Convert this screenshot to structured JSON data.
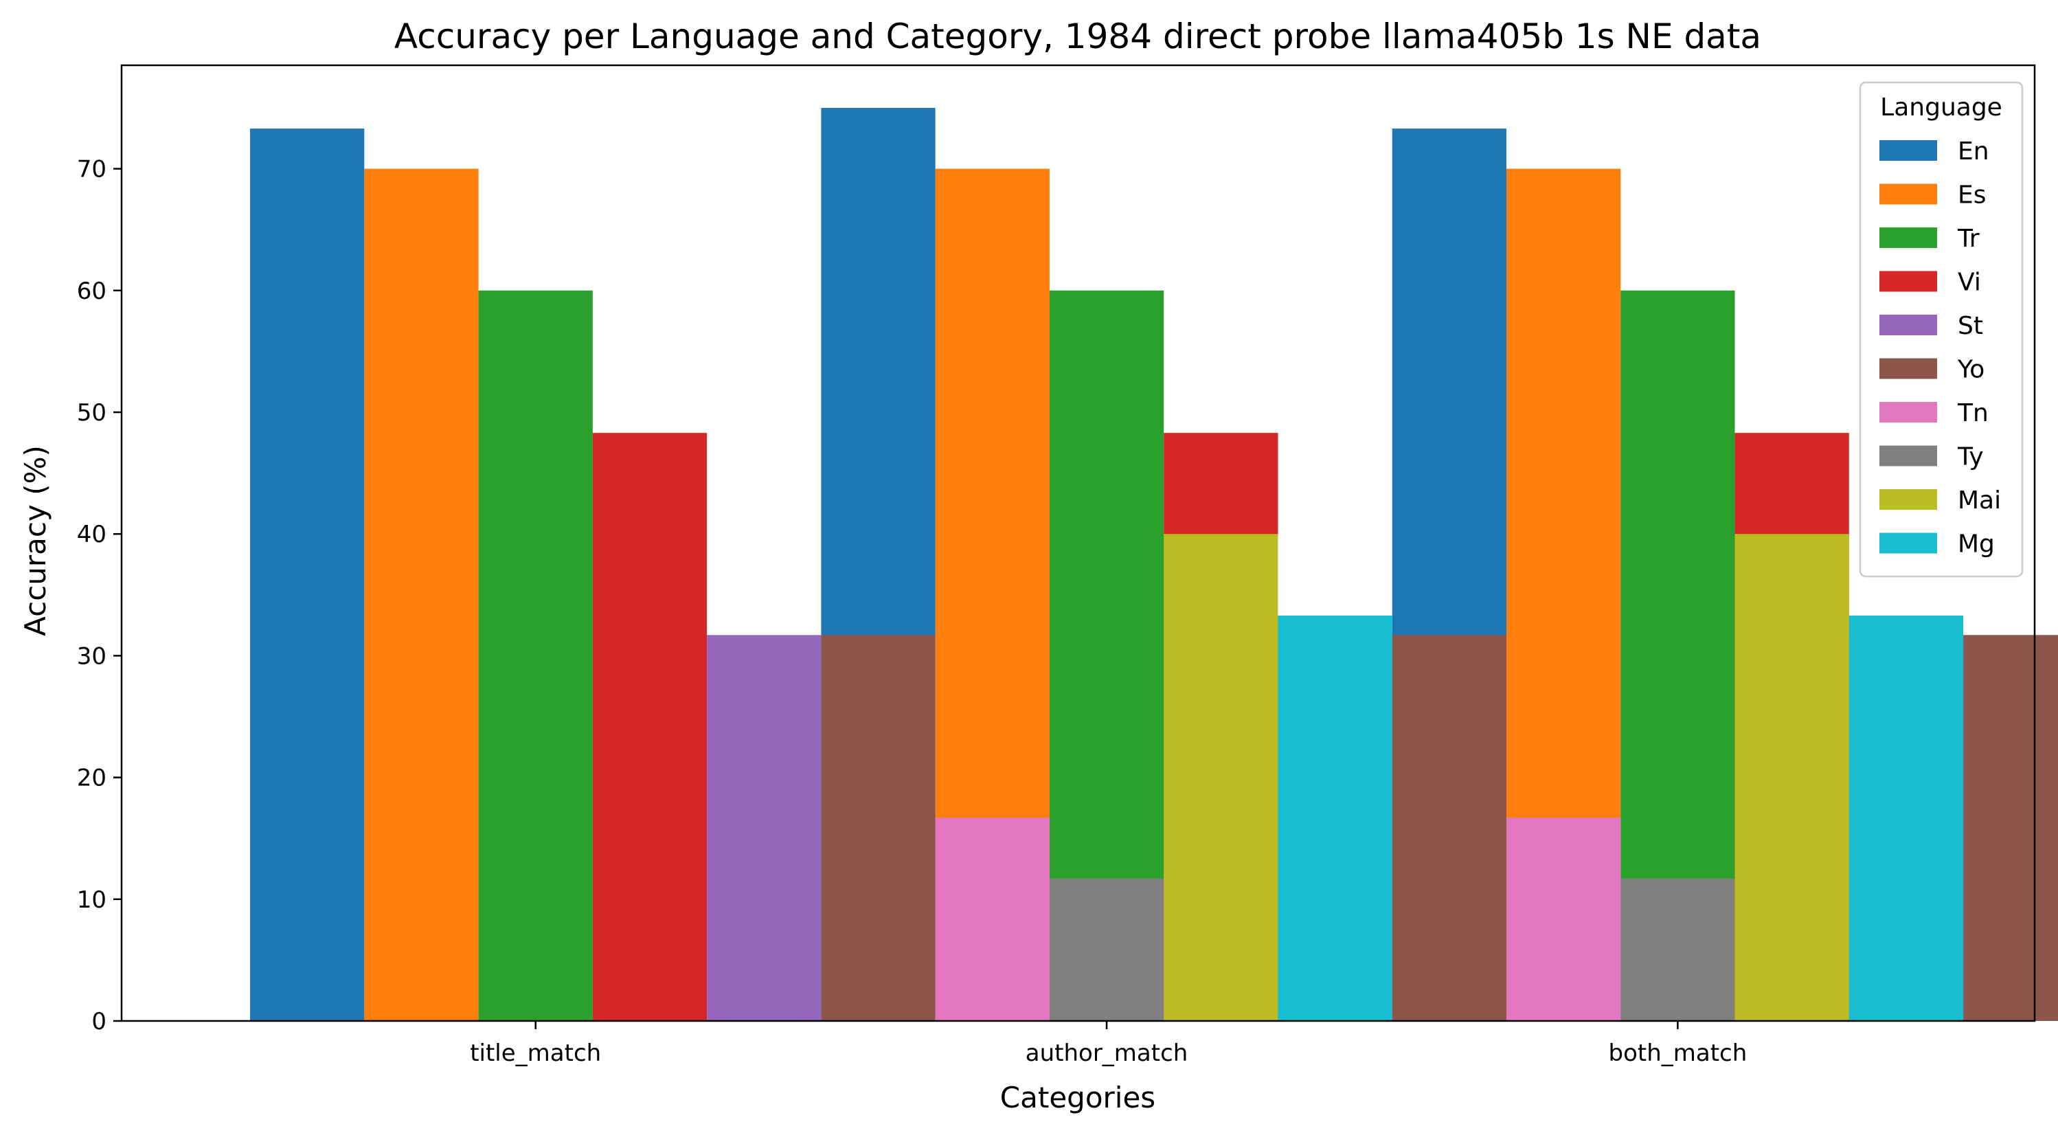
{
  "chart_data": {
    "type": "bar",
    "title": "Accuracy per Language and Category, 1984 direct probe llama405b 1s NE data",
    "xlabel": "Categories",
    "ylabel": "Accuracy (%)",
    "categories": [
      "title_match",
      "author_match",
      "both_match"
    ],
    "ylim": [
      0,
      78.5
    ],
    "yticks": [
      0,
      10,
      20,
      30,
      40,
      50,
      60,
      70
    ],
    "grid": false,
    "legend": {
      "title": "Language",
      "placement": "top-right"
    },
    "series": [
      {
        "name": "En",
        "color": "#1f77b4",
        "values": [
          73.3,
          75.0,
          73.3
        ]
      },
      {
        "name": "Es",
        "color": "#ff7f0e",
        "values": [
          70.0,
          70.0,
          70.0
        ]
      },
      {
        "name": "Tr",
        "color": "#2ca02c",
        "values": [
          60.0,
          60.0,
          60.0
        ]
      },
      {
        "name": "Vi",
        "color": "#d62728",
        "values": [
          48.3,
          48.3,
          48.3
        ]
      },
      {
        "name": "St",
        "color": "#9467bd",
        "values": [
          31.7,
          31.7,
          31.7
        ]
      },
      {
        "name": "Yo",
        "color": "#8c564b",
        "values": [
          31.7,
          31.7,
          31.7
        ]
      },
      {
        "name": "Tn",
        "color": "#e377c2",
        "values": [
          16.7,
          16.7,
          16.7
        ]
      },
      {
        "name": "Ty",
        "color": "#7f7f7f",
        "values": [
          11.7,
          11.7,
          11.7
        ]
      },
      {
        "name": "Mai",
        "color": "#bcbd22",
        "values": [
          40.0,
          40.0,
          40.0
        ]
      },
      {
        "name": "Mg",
        "color": "#17becf",
        "values": [
          33.3,
          33.3,
          33.3
        ]
      }
    ]
  }
}
